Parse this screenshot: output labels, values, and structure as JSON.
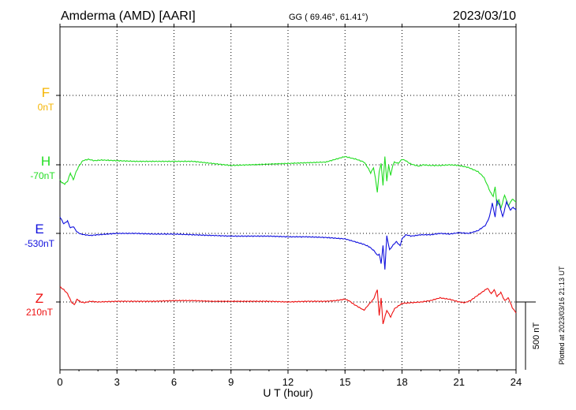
{
  "header": {
    "station": "Amderma (AMD)  [AARI]",
    "coords": "GG ( 69.46°,  61.41°)",
    "date": "2023/03/10"
  },
  "footer": {
    "plotted": "Plotted at 2023/03/16 21:13 UT"
  },
  "scale_bar": {
    "label": "500 nT",
    "value_nT": 500
  },
  "chart_data": {
    "type": "line",
    "title": "Amderma (AMD)  [AARI]",
    "xlabel": "U T (hour)",
    "ylabel": "",
    "xlim": [
      0,
      24
    ],
    "xticks": [
      0,
      3,
      6,
      9,
      12,
      15,
      18,
      21,
      24
    ],
    "xtick_labels": [
      "0",
      "3",
      "6",
      "9",
      "12",
      "15",
      "18",
      "21",
      "24"
    ],
    "grid": true,
    "units": "nT",
    "series": [
      {
        "name": "F",
        "baseline_label": "0nT",
        "baseline_nT": 0,
        "color": "#f5b400",
        "points": []
      },
      {
        "name": "H",
        "baseline_label": "-70nT",
        "baseline_nT": -70,
        "color": "#22dd22",
        "points": [
          [
            0,
            -110
          ],
          [
            0.1,
            -130
          ],
          [
            0.25,
            -140
          ],
          [
            0.4,
            -120
          ],
          [
            0.55,
            -60
          ],
          [
            0.7,
            -110
          ],
          [
            0.85,
            -50
          ],
          [
            1.0,
            -10
          ],
          [
            1.2,
            30
          ],
          [
            1.5,
            40
          ],
          [
            1.8,
            30
          ],
          [
            2.2,
            35
          ],
          [
            3.0,
            30
          ],
          [
            4.0,
            25
          ],
          [
            5.0,
            25
          ],
          [
            6.0,
            25
          ],
          [
            7.0,
            25
          ],
          [
            8.0,
            10
          ],
          [
            9.0,
            -5
          ],
          [
            10.0,
            0
          ],
          [
            11.0,
            5
          ],
          [
            12.0,
            10
          ],
          [
            13.0,
            15
          ],
          [
            14.0,
            20
          ],
          [
            14.5,
            40
          ],
          [
            15.0,
            60
          ],
          [
            15.3,
            50
          ],
          [
            15.6,
            40
          ],
          [
            16.0,
            20
          ],
          [
            16.2,
            -20
          ],
          [
            16.35,
            -60
          ],
          [
            16.5,
            -20
          ],
          [
            16.6,
            -100
          ],
          [
            16.7,
            -200
          ],
          [
            16.8,
            -50
          ],
          [
            16.9,
            10
          ],
          [
            17.0,
            -150
          ],
          [
            17.1,
            60
          ],
          [
            17.2,
            -120
          ],
          [
            17.3,
            0
          ],
          [
            17.4,
            -80
          ],
          [
            17.5,
            -10
          ],
          [
            17.6,
            20
          ],
          [
            17.8,
            10
          ],
          [
            18.0,
            40
          ],
          [
            18.2,
            30
          ],
          [
            18.4,
            10
          ],
          [
            18.6,
            0
          ],
          [
            18.9,
            -10
          ],
          [
            19.1,
            0
          ],
          [
            19.5,
            -5
          ],
          [
            20.0,
            -5
          ],
          [
            20.5,
            0
          ],
          [
            21.0,
            -5
          ],
          [
            21.5,
            -20
          ],
          [
            22.0,
            -50
          ],
          [
            22.3,
            -90
          ],
          [
            22.5,
            -150
          ],
          [
            22.65,
            -200
          ],
          [
            22.8,
            -230
          ],
          [
            22.9,
            -160
          ],
          [
            23.0,
            -300
          ],
          [
            23.1,
            -250
          ],
          [
            23.2,
            -320
          ],
          [
            23.4,
            -220
          ],
          [
            23.6,
            -300
          ],
          [
            23.8,
            -250
          ],
          [
            24.0,
            -270
          ]
        ]
      },
      {
        "name": "E",
        "baseline_label": "-530nT",
        "baseline_nT": -530,
        "color": "#1010dd",
        "points": [
          [
            0,
            120
          ],
          [
            0.2,
            70
          ],
          [
            0.4,
            90
          ],
          [
            0.55,
            40
          ],
          [
            0.7,
            50
          ],
          [
            0.9,
            10
          ],
          [
            1.1,
            -5
          ],
          [
            1.3,
            -10
          ],
          [
            1.6,
            -15
          ],
          [
            2.0,
            -10
          ],
          [
            3.0,
            0
          ],
          [
            4.0,
            0
          ],
          [
            5.0,
            -5
          ],
          [
            6.0,
            -5
          ],
          [
            7.0,
            -10
          ],
          [
            8.0,
            -15
          ],
          [
            9.0,
            -20
          ],
          [
            10.0,
            -20
          ],
          [
            11.0,
            -20
          ],
          [
            12.0,
            -25
          ],
          [
            13.0,
            -25
          ],
          [
            14.0,
            -30
          ],
          [
            15.0,
            -40
          ],
          [
            15.5,
            -60
          ],
          [
            16.0,
            -80
          ],
          [
            16.3,
            -100
          ],
          [
            16.55,
            -130
          ],
          [
            16.7,
            -160
          ],
          [
            16.8,
            -150
          ],
          [
            16.9,
            -220
          ],
          [
            17.0,
            -90
          ],
          [
            17.1,
            -260
          ],
          [
            17.2,
            -20
          ],
          [
            17.35,
            -120
          ],
          [
            17.5,
            -90
          ],
          [
            17.7,
            -60
          ],
          [
            17.9,
            -90
          ],
          [
            18.0,
            -40
          ],
          [
            18.2,
            -10
          ],
          [
            18.5,
            -20
          ],
          [
            19.0,
            -10
          ],
          [
            19.5,
            -10
          ],
          [
            20.0,
            0
          ],
          [
            20.5,
            -5
          ],
          [
            21.0,
            5
          ],
          [
            21.5,
            0
          ],
          [
            22.0,
            20
          ],
          [
            22.4,
            60
          ],
          [
            22.6,
            120
          ],
          [
            22.75,
            220
          ],
          [
            22.9,
            120
          ],
          [
            23.0,
            240
          ],
          [
            23.15,
            200
          ],
          [
            23.3,
            120
          ],
          [
            23.5,
            230
          ],
          [
            23.7,
            170
          ],
          [
            23.85,
            190
          ],
          [
            24.0,
            170
          ]
        ]
      },
      {
        "name": "Z",
        "baseline_label": "210nT",
        "baseline_nT": 210,
        "color": "#ee1111",
        "points": [
          [
            0,
            110
          ],
          [
            0.2,
            90
          ],
          [
            0.4,
            60
          ],
          [
            0.6,
            0
          ],
          [
            0.75,
            -20
          ],
          [
            0.9,
            20
          ],
          [
            1.1,
            0
          ],
          [
            1.3,
            -5
          ],
          [
            1.6,
            5
          ],
          [
            2.0,
            0
          ],
          [
            3.0,
            5
          ],
          [
            4.0,
            5
          ],
          [
            5.0,
            5
          ],
          [
            6.0,
            10
          ],
          [
            7.0,
            10
          ],
          [
            8.0,
            5
          ],
          [
            9.0,
            5
          ],
          [
            10.0,
            5
          ],
          [
            11.0,
            5
          ],
          [
            12.0,
            0
          ],
          [
            13.0,
            5
          ],
          [
            14.0,
            5
          ],
          [
            14.5,
            10
          ],
          [
            15.0,
            20
          ],
          [
            15.2,
            10
          ],
          [
            15.5,
            -20
          ],
          [
            16.0,
            -60
          ],
          [
            16.3,
            -10
          ],
          [
            16.5,
            20
          ],
          [
            16.7,
            90
          ],
          [
            16.8,
            -100
          ],
          [
            16.9,
            30
          ],
          [
            17.0,
            -160
          ],
          [
            17.2,
            -60
          ],
          [
            17.4,
            -110
          ],
          [
            17.6,
            -50
          ],
          [
            17.8,
            -30
          ],
          [
            18.0,
            -10
          ],
          [
            18.5,
            -5
          ],
          [
            19.0,
            0
          ],
          [
            19.5,
            10
          ],
          [
            20.0,
            30
          ],
          [
            20.5,
            20
          ],
          [
            21.0,
            0
          ],
          [
            21.3,
            -5
          ],
          [
            21.6,
            10
          ],
          [
            22.0,
            50
          ],
          [
            22.3,
            80
          ],
          [
            22.5,
            100
          ],
          [
            22.7,
            60
          ],
          [
            22.85,
            90
          ],
          [
            23.0,
            40
          ],
          [
            23.2,
            70
          ],
          [
            23.4,
            10
          ],
          [
            23.6,
            30
          ],
          [
            23.8,
            -40
          ],
          [
            24.0,
            -80
          ]
        ]
      }
    ]
  }
}
